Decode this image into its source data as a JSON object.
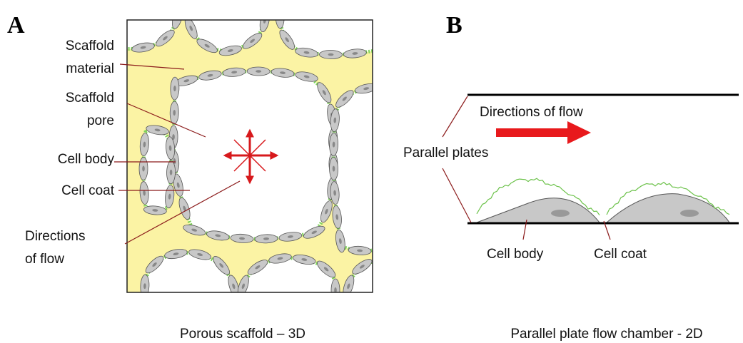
{
  "panels": [
    {
      "label": "A",
      "caption": "Porous scaffold – 3D",
      "labels": [
        {
          "lines": [
            "Scaffold",
            "material"
          ]
        },
        {
          "lines": [
            "Scaffold",
            "pore"
          ]
        },
        {
          "lines": [
            "Cell body"
          ]
        },
        {
          "lines": [
            "Cell coat"
          ]
        },
        {
          "lines": [
            "Directions",
            "of flow"
          ]
        }
      ]
    },
    {
      "label": "B",
      "caption": "Parallel plate flow chamber - 2D",
      "labels": [
        {
          "lines": [
            "Directions of flow"
          ]
        },
        {
          "lines": [
            "Parallel plates"
          ]
        },
        {
          "lines": [
            "Cell body"
          ]
        },
        {
          "lines": [
            "Cell coat"
          ]
        }
      ]
    }
  ]
}
